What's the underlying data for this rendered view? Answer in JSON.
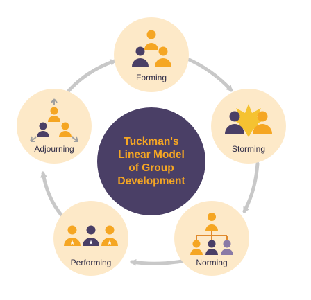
{
  "diagram": {
    "center_title": "Tuckman's\nLinear Model\nof Group\nDevelopment",
    "stages": [
      {
        "key": "forming",
        "label": "Forming"
      },
      {
        "key": "storming",
        "label": "Storming"
      },
      {
        "key": "norming",
        "label": "Norming"
      },
      {
        "key": "performing",
        "label": "Performing"
      },
      {
        "key": "adjourning",
        "label": "Adjourning"
      }
    ]
  },
  "colors": {
    "background": "#ffffff",
    "stage_circle": "#fde9c8",
    "center_circle": "#4a3f66",
    "orange": "#f5a623",
    "purple": "#4a3f66",
    "arrow": "#c8c8c8",
    "label_text": "#2d2a45",
    "burst": "#f5c231"
  },
  "icons": [
    "forming-people-icon",
    "storming-conflict-icon",
    "norming-hierarchy-icon",
    "performing-stars-icon",
    "adjourning-split-icon"
  ]
}
